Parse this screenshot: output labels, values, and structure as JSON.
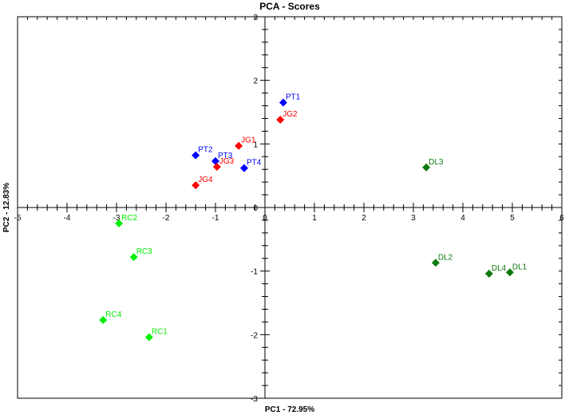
{
  "chart_data": {
    "type": "scatter",
    "title": "PCA - Scores",
    "xlabel": "PC1 - 72.95%",
    "ylabel": "PC2 - 12.83%",
    "xlim": [
      -5,
      6
    ],
    "ylim": [
      -3,
      3
    ],
    "x_ticks": [
      -5,
      -4,
      -3,
      -2,
      -1,
      0,
      1,
      2,
      3,
      4,
      5,
      6
    ],
    "y_ticks": [
      -3,
      -2,
      -1,
      0,
      1,
      2,
      3
    ],
    "grid": false,
    "legend": null,
    "series": [
      {
        "name": "PT",
        "color": "#0000ff",
        "marker": "diamond",
        "points": [
          {
            "label": "PT1",
            "x": 0.37,
            "y": 1.65
          },
          {
            "label": "PT2",
            "x": -1.4,
            "y": 0.82
          },
          {
            "label": "PT3",
            "x": -1.0,
            "y": 0.73
          },
          {
            "label": "PT4",
            "x": -0.42,
            "y": 0.62
          }
        ]
      },
      {
        "name": "JG",
        "color": "#ff0000",
        "marker": "diamond",
        "points": [
          {
            "label": "JG1",
            "x": -0.53,
            "y": 0.97
          },
          {
            "label": "JG2",
            "x": 0.31,
            "y": 1.38
          },
          {
            "label": "JG3",
            "x": -0.97,
            "y": 0.64
          },
          {
            "label": "JG4",
            "x": -1.4,
            "y": 0.35
          }
        ]
      },
      {
        "name": "RC",
        "color": "#00ee00",
        "marker": "diamond",
        "points": [
          {
            "label": "RC1",
            "x": -2.34,
            "y": -2.04
          },
          {
            "label": "RC2",
            "x": -2.95,
            "y": -0.25
          },
          {
            "label": "RC3",
            "x": -2.65,
            "y": -0.78
          },
          {
            "label": "RC4",
            "x": -3.27,
            "y": -1.77
          }
        ]
      },
      {
        "name": "DL",
        "color": "#0f7a0f",
        "marker": "diamond",
        "points": [
          {
            "label": "DL1",
            "x": 4.95,
            "y": -1.02
          },
          {
            "label": "DL2",
            "x": 3.45,
            "y": -0.87
          },
          {
            "label": "DL3",
            "x": 3.26,
            "y": 0.63
          },
          {
            "label": "DL4",
            "x": 4.53,
            "y": -1.04
          }
        ]
      }
    ]
  }
}
